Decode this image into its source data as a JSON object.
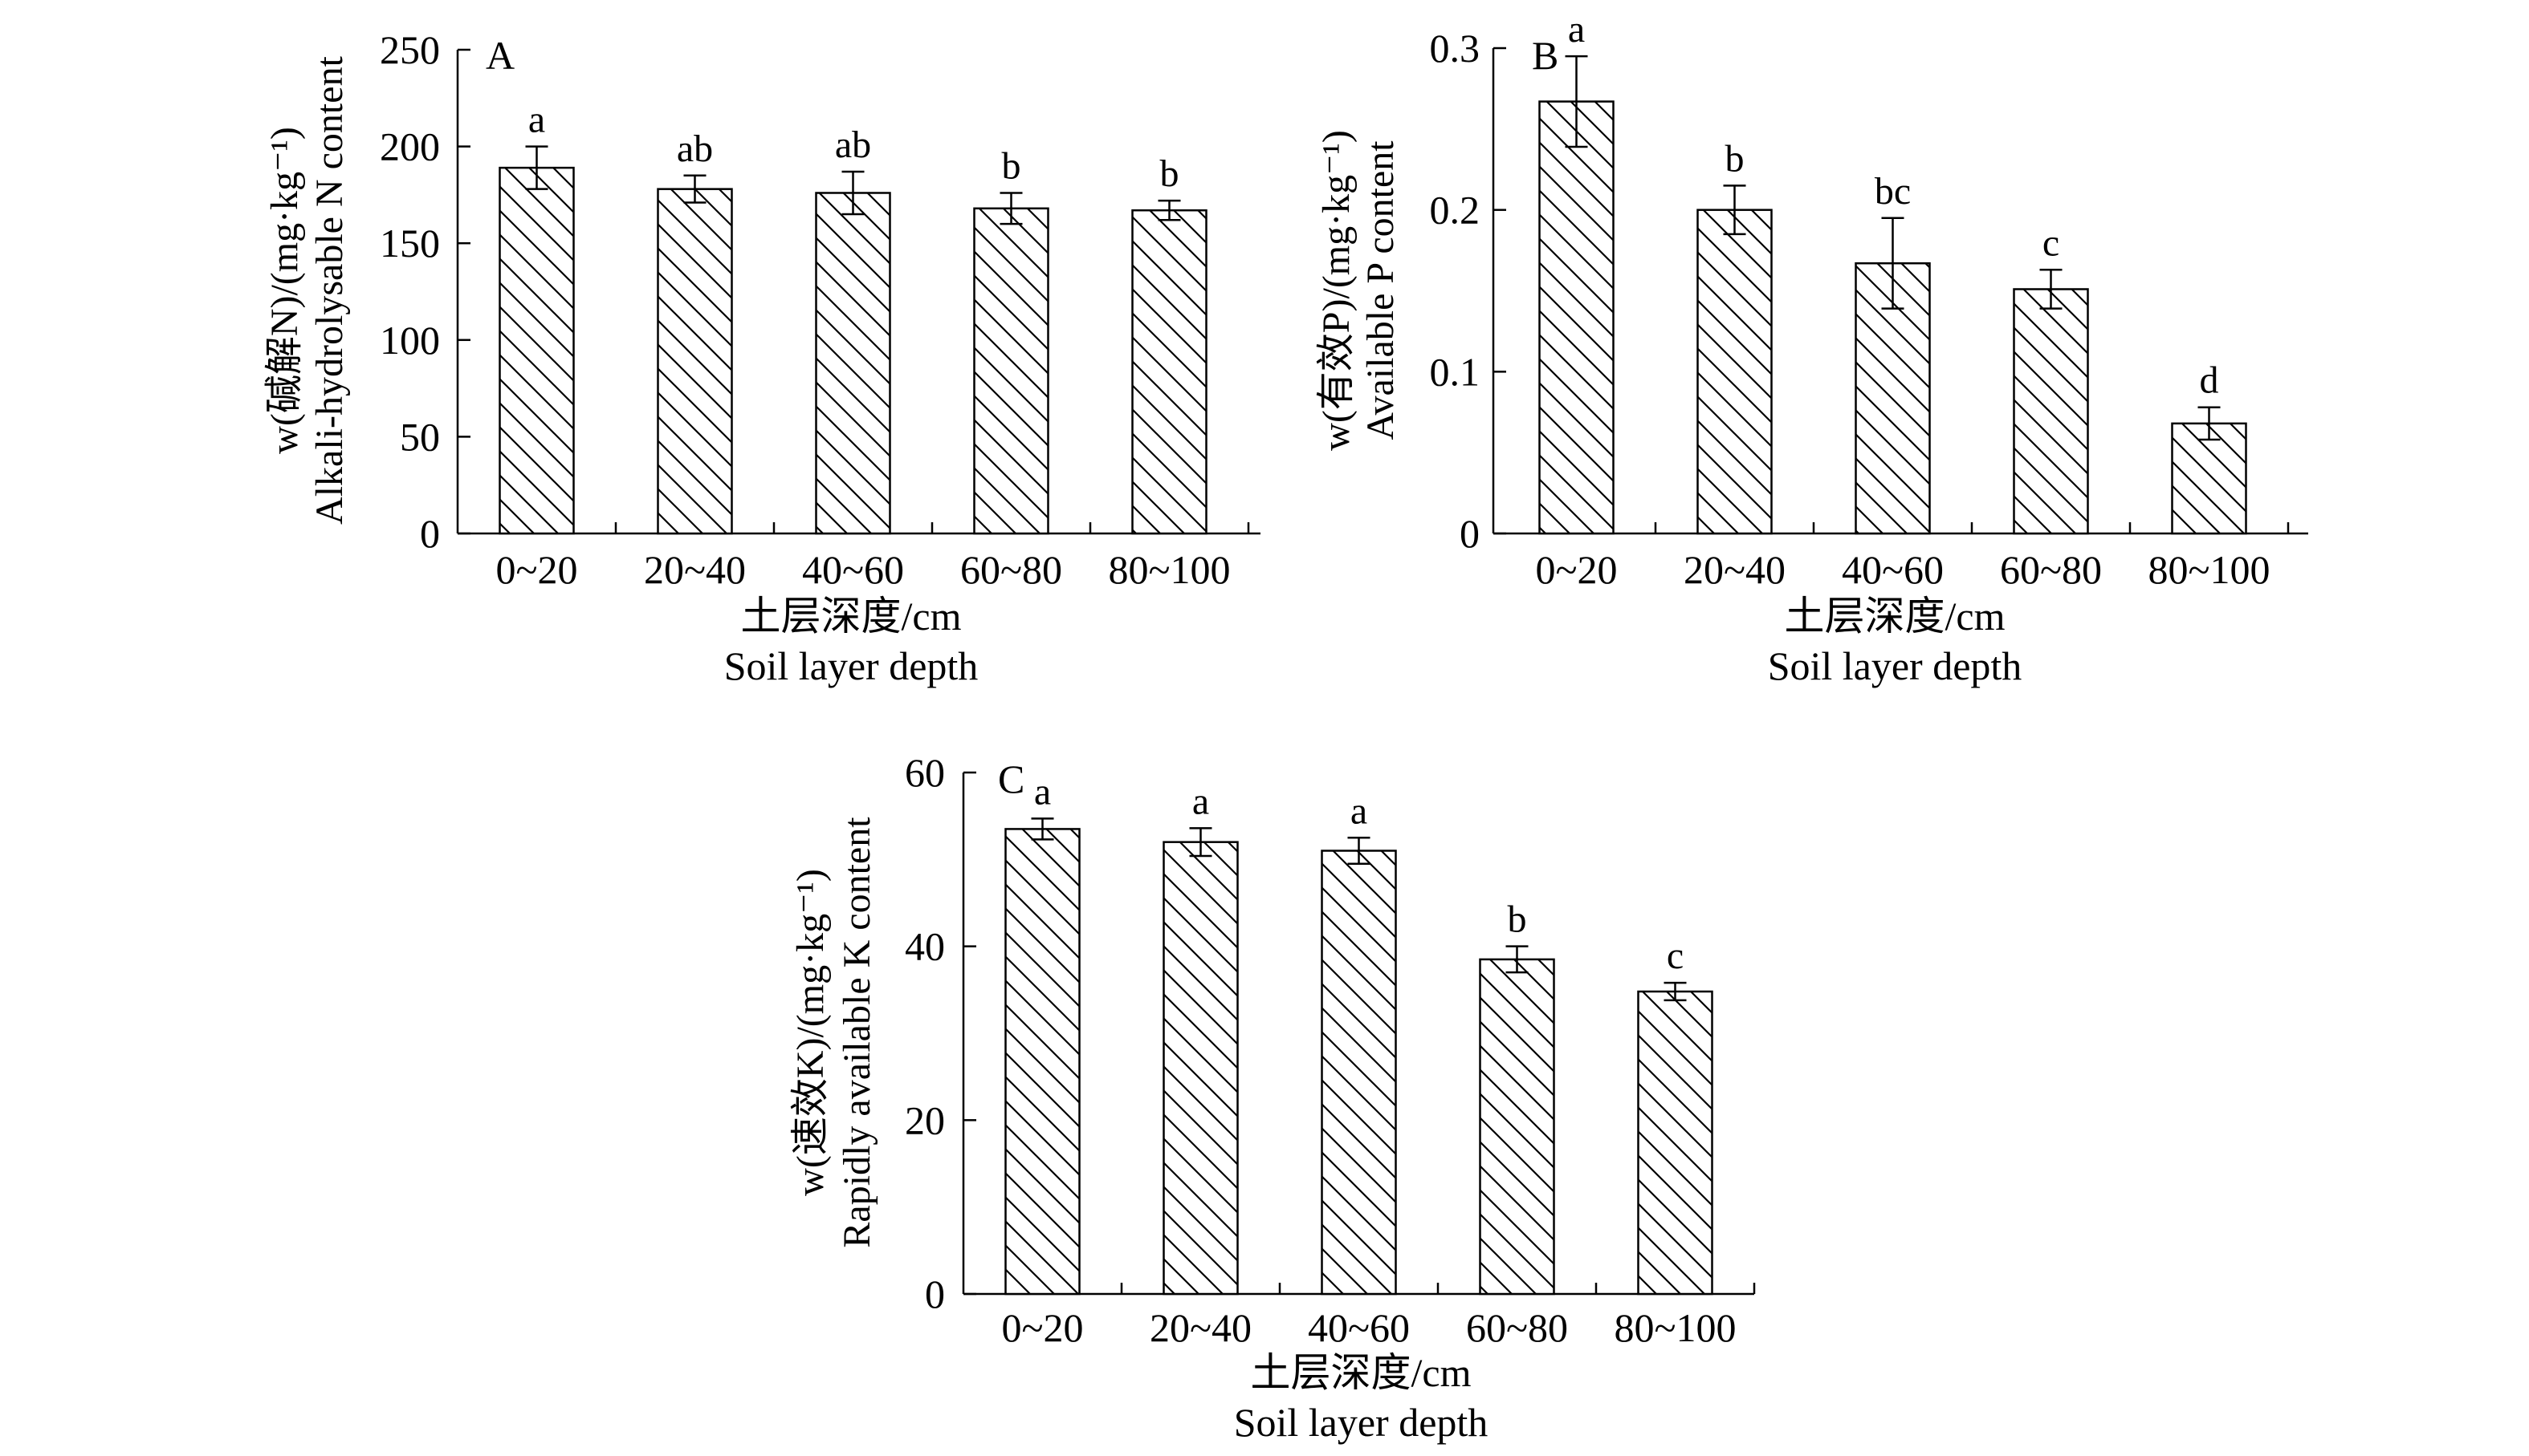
{
  "chart_data": [
    {
      "type": "bar",
      "panel_label": "A",
      "categories": [
        "0~20",
        "20~40",
        "40~60",
        "60~80",
        "80~100"
      ],
      "values": [
        189,
        178,
        176,
        168,
        167
      ],
      "errors": [
        11,
        7,
        11,
        8,
        5
      ],
      "significance_letters": [
        "a",
        "ab",
        "ab",
        "b",
        "b"
      ],
      "ylim": [
        0,
        250
      ],
      "yticks": [
        0,
        50,
        100,
        150,
        200,
        250
      ],
      "ytick_labels": [
        "0",
        "50",
        "100",
        "150",
        "200",
        "250"
      ],
      "ylabel_cn": "w(碱解N)/(mg·kg⁻¹)",
      "ylabel_en": "Alkali-hydrolysable N content",
      "xlabel_cn": "土层深度/cm",
      "xlabel_en": "Soil layer depth",
      "bar_fill": "diagonal-hatch",
      "grid": false
    },
    {
      "type": "bar",
      "panel_label": "B",
      "categories": [
        "0~20",
        "20~40",
        "40~60",
        "60~80",
        "80~100"
      ],
      "values": [
        0.267,
        0.2,
        0.167,
        0.151,
        0.068
      ],
      "errors": [
        0.028,
        0.015,
        0.028,
        0.012,
        0.01
      ],
      "significance_letters": [
        "a",
        "b",
        "bc",
        "c",
        "d"
      ],
      "ylim": [
        0,
        0.3
      ],
      "yticks": [
        0,
        0.1,
        0.2,
        0.3
      ],
      "ytick_labels": [
        "0",
        "0.1",
        "0.2",
        "0.3"
      ],
      "ylabel_cn": "w(有效P)/(mg·kg⁻¹)",
      "ylabel_en": "Available P content",
      "xlabel_cn": "土层深度/cm",
      "xlabel_en": "Soil layer depth",
      "bar_fill": "diagonal-hatch",
      "grid": false
    },
    {
      "type": "bar",
      "panel_label": "C",
      "categories": [
        "0~20",
        "20~40",
        "40~60",
        "60~80",
        "80~100"
      ],
      "values": [
        53.5,
        52.0,
        51.0,
        38.5,
        34.8
      ],
      "errors": [
        1.2,
        1.6,
        1.5,
        1.5,
        1.0
      ],
      "significance_letters": [
        "a",
        "a",
        "a",
        "b",
        "c"
      ],
      "ylim": [
        0,
        60
      ],
      "yticks": [
        0,
        20,
        40,
        60
      ],
      "ytick_labels": [
        "0",
        "20",
        "40",
        "60"
      ],
      "ylabel_cn": "w(速效K)/(mg·kg⁻¹)",
      "ylabel_en": "Rapidly available K content",
      "xlabel_cn": "土层深度/cm",
      "xlabel_en": "Soil layer depth",
      "bar_fill": "diagonal-hatch",
      "grid": false
    }
  ]
}
